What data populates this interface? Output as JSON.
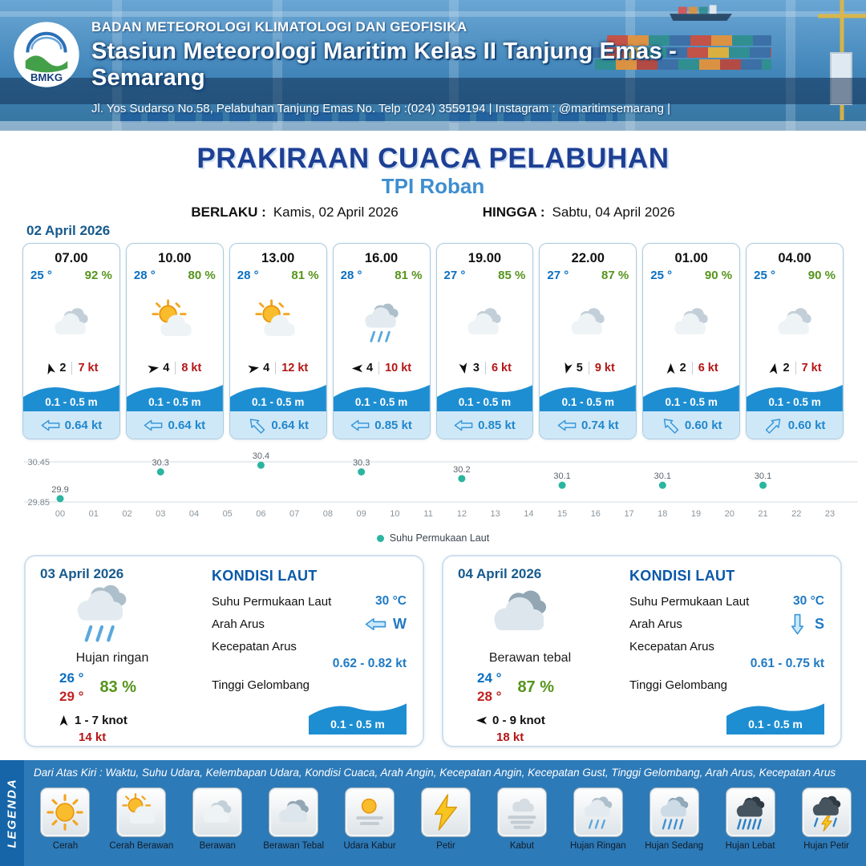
{
  "header": {
    "logo_text": "BMKG",
    "org": "BADAN METEOROLOGI KLIMATOLOGI DAN GEOFISIKA",
    "station": "Stasiun Meteorologi Maritim Kelas II Tanjung Emas - Semarang",
    "address": "Jl. Yos Sudarso No.58, Pelabuhan Tanjung Emas No. Telp :(024) 3559194 | Instagram : @maritimsemarang |"
  },
  "title": {
    "main": "PRAKIRAAN CUACA PELABUHAN",
    "location": "TPI Roban",
    "berlaku_label": "BERLAKU :",
    "berlaku_value": "Kamis, 02 April 2026",
    "hingga_label": "HINGGA :",
    "hingga_value": "Sabtu, 04 April 2026"
  },
  "forecast_date": "02 April 2026",
  "hourly": [
    {
      "time": "07.00",
      "temp": "25 °",
      "rh": "92 %",
      "icon": "berawan",
      "wind_deg": -15,
      "wind_speed": "2",
      "gust": "7 kt",
      "wave": "0.1 - 0.5 m",
      "current": "0.64 kt",
      "current_deg": 0
    },
    {
      "time": "10.00",
      "temp": "28 °",
      "rh": "80 %",
      "icon": "cerah-berawan",
      "wind_deg": 80,
      "wind_speed": "4",
      "gust": "8 kt",
      "wave": "0.1 - 0.5 m",
      "current": "0.64 kt",
      "current_deg": 0
    },
    {
      "time": "13.00",
      "temp": "28 °",
      "rh": "81 %",
      "icon": "cerah-berawan",
      "wind_deg": 80,
      "wind_speed": "4",
      "gust": "12 kt",
      "wave": "0.1 - 0.5 m",
      "current": "0.64 kt",
      "current_deg": 45
    },
    {
      "time": "16.00",
      "temp": "28 °",
      "rh": "81 %",
      "icon": "hujan-ringan",
      "wind_deg": 270,
      "wind_speed": "4",
      "gust": "10 kt",
      "wave": "0.1 - 0.5 m",
      "current": "0.85 kt",
      "current_deg": 0
    },
    {
      "time": "19.00",
      "temp": "27 °",
      "rh": "85 %",
      "icon": "berawan",
      "wind_deg": 170,
      "wind_speed": "3",
      "gust": "6 kt",
      "wave": "0.1 - 0.5 m",
      "current": "0.85 kt",
      "current_deg": 0
    },
    {
      "time": "22.00",
      "temp": "27 °",
      "rh": "87 %",
      "icon": "berawan",
      "wind_deg": 195,
      "wind_speed": "5",
      "gust": "9 kt",
      "wave": "0.1 - 0.5 m",
      "current": "0.74 kt",
      "current_deg": 0
    },
    {
      "time": "01.00",
      "temp": "25 °",
      "rh": "90 %",
      "icon": "berawan",
      "wind_deg": 0,
      "wind_speed": "2",
      "gust": "6 kt",
      "wave": "0.1 - 0.5 m",
      "current": "0.60 kt",
      "current_deg": 45
    },
    {
      "time": "04.00",
      "temp": "25 °",
      "rh": "90 %",
      "icon": "berawan",
      "wind_deg": 10,
      "wind_speed": "2",
      "gust": "7 kt",
      "wave": "0.1 - 0.5 m",
      "current": "0.60 kt",
      "current_deg": 135
    }
  ],
  "chart_data": {
    "type": "scatter",
    "series": [
      {
        "name": "Suhu Permukaan Laut",
        "x": [
          0,
          3,
          6,
          9,
          12,
          15,
          18,
          21
        ],
        "values": [
          29.9,
          30.3,
          30.4,
          30.3,
          30.2,
          30.1,
          30.1,
          30.1
        ]
      }
    ],
    "x_ticks": [
      "00",
      "01",
      "02",
      "03",
      "04",
      "05",
      "06",
      "07",
      "08",
      "09",
      "10",
      "11",
      "12",
      "13",
      "14",
      "15",
      "16",
      "17",
      "18",
      "19",
      "20",
      "21",
      "22",
      "23"
    ],
    "y_ticks": [
      "30.45",
      "29.85"
    ],
    "ylim": [
      29.85,
      30.45
    ],
    "legend": "Suhu Permukaan Laut",
    "legend_position": "bottom",
    "grid": true
  },
  "daily": [
    {
      "date": "03 April 2026",
      "icon": "hujan-ringan",
      "condition": "Hujan ringan",
      "temp_min": "26 °",
      "temp_max": "29 °",
      "rh": "83 %",
      "wind": "1 - 7 knot",
      "gust": "14 kt",
      "wind_deg": 0,
      "sea": {
        "title": "KONDISI LAUT",
        "sst_label": "Suhu Permukaan Laut",
        "sst": "30 °C",
        "arah_label": "Arah Arus",
        "arah": "W",
        "arah_deg": 0,
        "kecepatan_label": "Kecepatan Arus",
        "kecepatan": "0.62 - 0.82 kt",
        "gelombang_label": "Tinggi Gelombang",
        "gelombang": "0.1 - 0.5 m"
      }
    },
    {
      "date": "04 April 2026",
      "icon": "berawan-tebal",
      "condition": "Berawan tebal",
      "temp_min": "24 °",
      "temp_max": "28 °",
      "rh": "87 %",
      "wind": "0 - 9 knot",
      "gust": "18 kt",
      "wind_deg": 270,
      "sea": {
        "title": "KONDISI LAUT",
        "sst_label": "Suhu Permukaan Laut",
        "sst": "30 °C",
        "arah_label": "Arah Arus",
        "arah": "S",
        "arah_deg": 270,
        "kecepatan_label": "Kecepatan Arus",
        "kecepatan": "0.61 - 0.75 kt",
        "gelombang_label": "Tinggi Gelombang",
        "gelombang": "0.1 - 0.5 m"
      }
    }
  ],
  "legend": {
    "title": "LEGENDA",
    "description": "Dari Atas Kiri : Waktu, Suhu Udara, Kelembapan Udara, Kondisi Cuaca, Arah Angin, Kecepatan Angin, Kecepatan Gust, Tinggi Gelombang, Arah Arus, Kecepatan Arus",
    "items": [
      {
        "icon": "cerah",
        "label": "Cerah"
      },
      {
        "icon": "cerah-berawan",
        "label": "Cerah Berawan"
      },
      {
        "icon": "berawan",
        "label": "Berawan"
      },
      {
        "icon": "berawan-tebal",
        "label": "Berawan Tebal"
      },
      {
        "icon": "udara-kabur",
        "label": "Udara Kabur"
      },
      {
        "icon": "petir",
        "label": "Petir"
      },
      {
        "icon": "kabut",
        "label": "Kabut"
      },
      {
        "icon": "hujan-ringan",
        "label": "Hujan Ringan"
      },
      {
        "icon": "hujan-sedang",
        "label": "Hujan Sedang"
      },
      {
        "icon": "hujan-lebat",
        "label": "Hujan Lebat"
      },
      {
        "icon": "hujan-petir",
        "label": "Hujan Petir"
      }
    ]
  },
  "colors": {
    "title_navy": "#1d3f94",
    "loc_blue": "#3e8ecf",
    "date_blue": "#175a8e",
    "temp_blue": "#0a6fc2",
    "temp_red": "#c22121",
    "rh_green": "#55941b",
    "gust_red": "#b51515",
    "wave_blue": "#1e8ed2",
    "current_bg": "#cfe8f7",
    "current_text": "#2187cc",
    "card_border": "#aacbe0",
    "sea_title_blue": "#0a58a8",
    "sea_value_blue": "#1f7ac4",
    "legend_bg": "#2d7ab8",
    "legend_side": "#1565a8",
    "chart_dot": "#2bb5a0"
  }
}
